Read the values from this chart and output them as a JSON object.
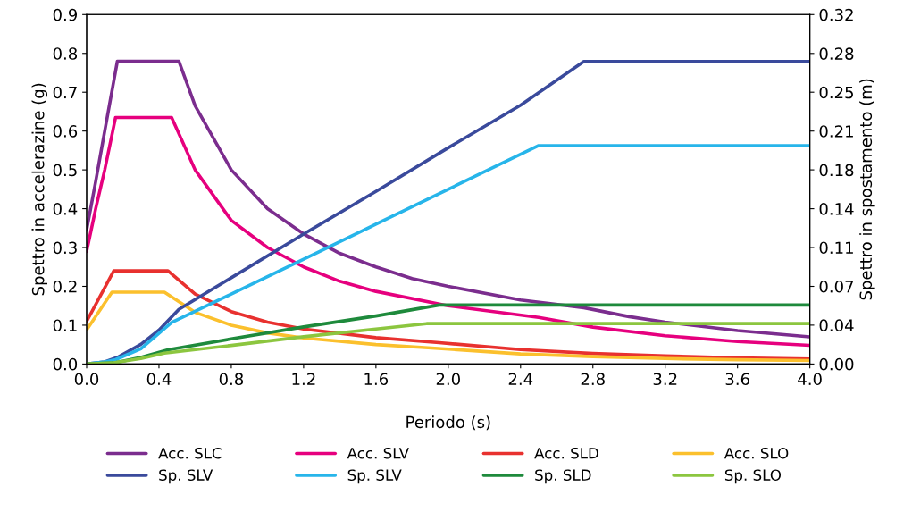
{
  "chart_data": {
    "type": "line",
    "xlabel": "Periodo (s)",
    "ylabel": "Spettro in accelerazine (g)",
    "y2label": "Spettro in spostamento (m)",
    "xlim": [
      0,
      4
    ],
    "xticks": [
      {
        "value": 0,
        "label": "0.0"
      },
      {
        "value": 0.4,
        "label": "0.4"
      },
      {
        "value": 0.8,
        "label": "0.8"
      },
      {
        "value": 1.2,
        "label": "1.2"
      },
      {
        "value": 1.6,
        "label": "1.6"
      },
      {
        "value": 2.0,
        "label": "2.0"
      },
      {
        "value": 2.4,
        "label": "2.4"
      },
      {
        "value": 2.8,
        "label": "2.8"
      },
      {
        "value": 3.2,
        "label": "3.2"
      },
      {
        "value": 3.6,
        "label": "3.6"
      },
      {
        "value": 4.0,
        "label": "4.0"
      }
    ],
    "ylim": [
      0,
      0.9
    ],
    "yticks": [
      {
        "value": 0,
        "label": "0.0"
      },
      0.1,
      0.2,
      0.3,
      0.4,
      0.5,
      0.6,
      0.7,
      0.8,
      0.9
    ],
    "y2lim": [
      0,
      0.32
    ],
    "y2ticks": [
      {
        "value": 0,
        "label": "0.00"
      },
      {
        "value": 0.0356,
        "label": "0.04"
      },
      {
        "value": 0.0711,
        "label": "0.07"
      },
      {
        "value": 0.1067,
        "label": "0.11"
      },
      {
        "value": 0.1422,
        "label": "0.14"
      },
      {
        "value": 0.1778,
        "label": "0.18"
      },
      {
        "value": 0.2133,
        "label": "0.21"
      },
      {
        "value": 0.2489,
        "label": "0.25"
      },
      {
        "value": 0.2844,
        "label": "0.28"
      },
      {
        "value": 0.32,
        "label": "0.32"
      }
    ],
    "grid": false,
    "legend": "bottom",
    "marker": "none",
    "line_style": "solid",
    "series": [
      {
        "name": "Acc. SLC",
        "color": "#7b2d8e",
        "x": [
          0,
          0.05,
          0.1,
          0.17,
          0.51,
          0.6,
          0.8,
          1.0,
          1.2,
          1.4,
          1.6,
          1.8,
          2.0,
          2.4,
          2.75,
          3.0,
          3.2,
          3.6,
          4.0
        ],
        "values": [
          0.345,
          0.47,
          0.6,
          0.78,
          0.78,
          0.665,
          0.5,
          0.4,
          0.335,
          0.285,
          0.25,
          0.22,
          0.2,
          0.165,
          0.145,
          0.122,
          0.108,
          0.086,
          0.07
        ]
      },
      {
        "name": "Acc. SLV",
        "color": "#e6007e",
        "x": [
          0,
          0.05,
          0.1,
          0.16,
          0.47,
          0.6,
          0.8,
          1.0,
          1.2,
          1.4,
          1.6,
          2.0,
          2.5,
          2.8,
          3.2,
          3.6,
          4.0
        ],
        "values": [
          0.29,
          0.4,
          0.5,
          0.635,
          0.635,
          0.5,
          0.37,
          0.3,
          0.25,
          0.213,
          0.187,
          0.15,
          0.12,
          0.095,
          0.073,
          0.058,
          0.048
        ]
      },
      {
        "name": "Acc. SLD",
        "color": "#e8312f",
        "x": [
          0,
          0.15,
          0.45,
          0.6,
          0.8,
          1.0,
          1.2,
          1.6,
          1.95,
          2.4,
          2.8,
          3.2,
          3.6,
          4.0
        ],
        "values": [
          0.11,
          0.24,
          0.24,
          0.18,
          0.135,
          0.108,
          0.09,
          0.068,
          0.055,
          0.037,
          0.027,
          0.021,
          0.016,
          0.013
        ]
      },
      {
        "name": "Acc. SLO",
        "color": "#fbc02d",
        "x": [
          0,
          0.14,
          0.43,
          0.6,
          0.8,
          1.0,
          1.2,
          1.6,
          1.85,
          2.4,
          2.8,
          3.2,
          3.6,
          4.0
        ],
        "values": [
          0.088,
          0.185,
          0.185,
          0.133,
          0.1,
          0.08,
          0.067,
          0.05,
          0.043,
          0.026,
          0.019,
          0.014,
          0.011,
          0.009
        ]
      },
      {
        "name": "Sp. SLV",
        "color": "#3a4a9c",
        "axis": "y2",
        "x": [
          0,
          0.1,
          0.17,
          0.3,
          0.4,
          0.51,
          0.8,
          1.2,
          1.6,
          2.0,
          2.4,
          2.75,
          4.0
        ],
        "values": [
          0,
          0.002,
          0.006,
          0.018,
          0.031,
          0.05,
          0.079,
          0.119,
          0.158,
          0.198,
          0.237,
          0.277,
          0.277
        ]
      },
      {
        "name": "Sp. SLV",
        "color": "#27b5ea",
        "axis": "y2",
        "x": [
          0,
          0.1,
          0.16,
          0.3,
          0.47,
          0.8,
          1.2,
          1.6,
          2.0,
          2.5,
          4.0
        ],
        "values": [
          0,
          0.002,
          0.004,
          0.014,
          0.038,
          0.064,
          0.096,
          0.128,
          0.16,
          0.2,
          0.2
        ]
      },
      {
        "name": "Sp. SLD",
        "color": "#1e8a3c",
        "axis": "y2",
        "x": [
          0,
          0.15,
          0.3,
          0.45,
          0.8,
          1.2,
          1.6,
          1.95,
          4.0
        ],
        "values": [
          0,
          0.001,
          0.006,
          0.013,
          0.023,
          0.034,
          0.044,
          0.054,
          0.054
        ]
      },
      {
        "name": "Sp. SLO",
        "color": "#8cc63f",
        "axis": "y2",
        "x": [
          0,
          0.14,
          0.3,
          0.43,
          0.8,
          1.2,
          1.6,
          1.88,
          4.0
        ],
        "values": [
          0,
          0.001,
          0.005,
          0.01,
          0.017,
          0.025,
          0.032,
          0.037,
          0.037
        ]
      }
    ]
  }
}
